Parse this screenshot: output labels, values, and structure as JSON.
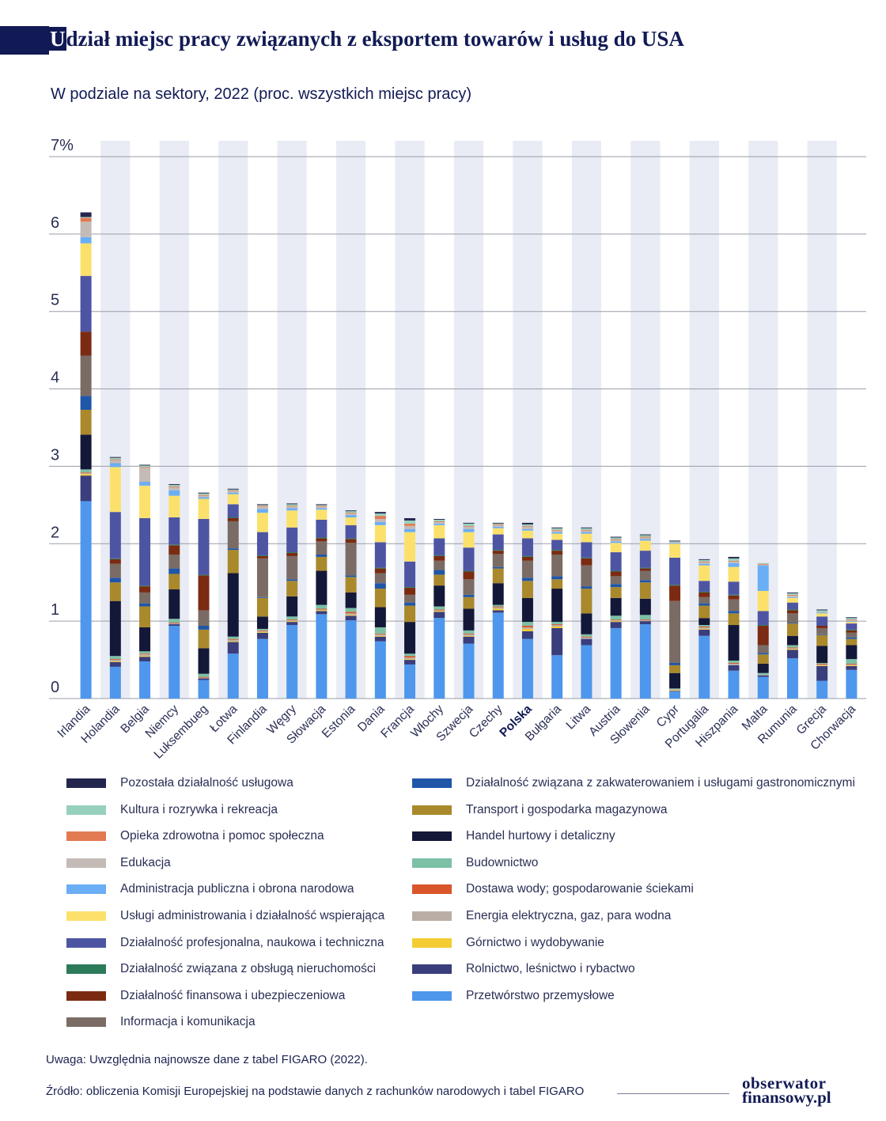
{
  "title": {
    "first_letter": "U",
    "rest": "dział miejsc pracy związanych z eksportem towarów i usług do USA"
  },
  "subtitle": "W podziale na sektory, 2022 (proc. wszystkich miejsc pracy)",
  "note": "Uwaga: Uwzględnia najnowsze dane z tabel FIGARO (2022).",
  "source": "Źródło: obliczenia Komisji Europejskiej na podstawie danych z rachunków narodowych i tabel FIGARO",
  "logo": {
    "line1": "obserwator",
    "line2": "finansowy.pl"
  },
  "colors": {
    "title": "#111a55",
    "band": "#e9ecf4",
    "grid": "#9a9da8",
    "highlight_label": "#111a55"
  },
  "chart_data": {
    "type": "bar",
    "stacked": true,
    "ylim": [
      0,
      7
    ],
    "yticks": [
      {
        "value": 0,
        "label": "0"
      },
      {
        "value": 1,
        "label": "1"
      },
      {
        "value": 2,
        "label": "2"
      },
      {
        "value": 3,
        "label": "3"
      },
      {
        "value": 4,
        "label": "4"
      },
      {
        "value": 5,
        "label": "5"
      },
      {
        "value": 6,
        "label": "6"
      },
      {
        "value": 7,
        "label": "7%"
      }
    ],
    "highlight_category": "Polska",
    "categories": [
      "Irlandia",
      "Holandia",
      "Belgia",
      "Niemcy",
      "Luksembueg",
      "Łotwa",
      "Finlandia",
      "Węgry",
      "Słowacja",
      "Estonia",
      "Dania",
      "Francja",
      "Włochy",
      "Szwecja",
      "Czechy",
      "Polska",
      "Bułgaria",
      "Litwa",
      "Austria",
      "Słowenia",
      "Cypr",
      "Portugalia",
      "Hiszpania",
      "Malta",
      "Rumunia",
      "Grecja",
      "Chorwacja"
    ],
    "series": [
      {
        "name": "Przetwórstwo przemysłowe",
        "color": "#4f97ec",
        "values": [
          2.55,
          0.41,
          0.48,
          0.94,
          0.24,
          0.58,
          0.77,
          0.95,
          1.09,
          1.01,
          0.74,
          0.44,
          1.04,
          0.71,
          1.11,
          0.77,
          0.56,
          0.69,
          0.91,
          0.96,
          0.09,
          0.81,
          0.36,
          0.28,
          0.52,
          0.23,
          0.37
        ]
      },
      {
        "name": "Rolnictwo, leśnictwo i rybactwo",
        "color": "#3a3e7c",
        "values": [
          0.33,
          0.06,
          0.06,
          0.02,
          0.02,
          0.15,
          0.08,
          0.04,
          0.04,
          0.06,
          0.06,
          0.06,
          0.08,
          0.09,
          0.03,
          0.1,
          0.35,
          0.08,
          0.08,
          0.04,
          0.01,
          0.08,
          0.07,
          0.02,
          0.11,
          0.19,
          0.05
        ]
      },
      {
        "name": "Górnictwo i wydobywanie",
        "color": "#f4cc33",
        "values": [
          0.02,
          0.01,
          0.01,
          0.0,
          0.0,
          0.01,
          0.01,
          0.01,
          0.01,
          0.01,
          0.01,
          0.01,
          0.01,
          0.01,
          0.02,
          0.03,
          0.02,
          0.0,
          0.01,
          0.0,
          0.01,
          0.01,
          0.0,
          0.0,
          0.01,
          0.01,
          0.01
        ]
      },
      {
        "name": "Energia elektryczna, gaz, para wodna",
        "color": "#b9aea6",
        "values": [
          0.01,
          0.02,
          0.02,
          0.01,
          0.01,
          0.02,
          0.01,
          0.01,
          0.01,
          0.02,
          0.02,
          0.02,
          0.01,
          0.02,
          0.02,
          0.02,
          0.02,
          0.02,
          0.01,
          0.01,
          0.01,
          0.02,
          0.02,
          0.01,
          0.01,
          0.01,
          0.01
        ]
      },
      {
        "name": "Dostawa wody; gospodarowanie ściekami",
        "color": "#d9562a",
        "values": [
          0.01,
          0.01,
          0.01,
          0.01,
          0.01,
          0.01,
          0.01,
          0.01,
          0.01,
          0.02,
          0.01,
          0.02,
          0.01,
          0.01,
          0.01,
          0.02,
          0.01,
          0.01,
          0.01,
          0.01,
          0.0,
          0.01,
          0.01,
          0.0,
          0.01,
          0.01,
          0.01
        ]
      },
      {
        "name": "Budownictwo",
        "color": "#7cc0a5",
        "values": [
          0.04,
          0.04,
          0.03,
          0.05,
          0.04,
          0.03,
          0.02,
          0.04,
          0.05,
          0.05,
          0.08,
          0.03,
          0.04,
          0.04,
          0.02,
          0.05,
          0.03,
          0.03,
          0.05,
          0.06,
          0.01,
          0.02,
          0.03,
          0.02,
          0.03,
          0.01,
          0.06
        ]
      },
      {
        "name": "Handel hurtowy i detaliczny",
        "color": "#141838",
        "values": [
          0.45,
          0.71,
          0.31,
          0.38,
          0.33,
          0.82,
          0.16,
          0.26,
          0.44,
          0.2,
          0.26,
          0.41,
          0.27,
          0.28,
          0.28,
          0.31,
          0.43,
          0.27,
          0.23,
          0.21,
          0.2,
          0.09,
          0.46,
          0.12,
          0.12,
          0.22,
          0.18
        ]
      },
      {
        "name": "Transport i gospodarka magazynowa",
        "color": "#a9892c",
        "values": [
          0.32,
          0.24,
          0.27,
          0.2,
          0.24,
          0.3,
          0.24,
          0.2,
          0.18,
          0.2,
          0.24,
          0.21,
          0.14,
          0.15,
          0.19,
          0.22,
          0.12,
          0.32,
          0.14,
          0.21,
          0.1,
          0.16,
          0.15,
          0.12,
          0.16,
          0.14,
          0.08
        ]
      },
      {
        "name": "Działalność związana z zakwaterowaniem i usługami gastronomicznymi",
        "color": "#1f56a8",
        "values": [
          0.18,
          0.06,
          0.04,
          0.07,
          0.05,
          0.02,
          0.01,
          0.02,
          0.03,
          0.02,
          0.07,
          0.04,
          0.06,
          0.03,
          0.02,
          0.04,
          0.04,
          0.03,
          0.04,
          0.03,
          0.03,
          0.03,
          0.03,
          0.02,
          0.01,
          0.01,
          0.02
        ]
      },
      {
        "name": "Informacja i komunikacja",
        "color": "#7a6c65",
        "values": [
          0.52,
          0.18,
          0.14,
          0.18,
          0.2,
          0.35,
          0.5,
          0.3,
          0.17,
          0.42,
          0.13,
          0.1,
          0.12,
          0.2,
          0.17,
          0.22,
          0.28,
          0.27,
          0.1,
          0.12,
          0.8,
          0.08,
          0.15,
          0.1,
          0.12,
          0.08,
          0.06
        ]
      },
      {
        "name": "Działalność finansowa i ubezpieczeniowa",
        "color": "#7a2b12",
        "values": [
          0.31,
          0.06,
          0.08,
          0.12,
          0.45,
          0.04,
          0.03,
          0.04,
          0.04,
          0.05,
          0.06,
          0.09,
          0.06,
          0.1,
          0.04,
          0.05,
          0.05,
          0.09,
          0.06,
          0.03,
          0.2,
          0.06,
          0.05,
          0.25,
          0.04,
          0.03,
          0.03
        ]
      },
      {
        "name": "Działalność związana z obsługą nieruchomości",
        "color": "#2d7a5a",
        "values": [
          0.0,
          0.01,
          0.01,
          0.01,
          0.01,
          0.01,
          0.01,
          0.01,
          0.01,
          0.01,
          0.01,
          0.01,
          0.01,
          0.01,
          0.01,
          0.01,
          0.01,
          0.01,
          0.01,
          0.01,
          0.01,
          0.01,
          0.01,
          0.01,
          0.01,
          0.0,
          0.01
        ]
      },
      {
        "name": "Działalność profesjonalna, naukowa i techniczna",
        "color": "#4d55a3",
        "values": [
          0.72,
          0.6,
          0.87,
          0.35,
          0.72,
          0.17,
          0.3,
          0.32,
          0.23,
          0.17,
          0.33,
          0.33,
          0.22,
          0.3,
          0.2,
          0.23,
          0.13,
          0.2,
          0.24,
          0.22,
          0.35,
          0.14,
          0.17,
          0.18,
          0.09,
          0.12,
          0.08
        ]
      },
      {
        "name": "Usługi administrowania i działalność wspierająca",
        "color": "#fbe16c",
        "values": [
          0.42,
          0.58,
          0.42,
          0.28,
          0.26,
          0.13,
          0.25,
          0.22,
          0.13,
          0.1,
          0.22,
          0.38,
          0.17,
          0.2,
          0.08,
          0.1,
          0.08,
          0.11,
          0.12,
          0.13,
          0.18,
          0.2,
          0.19,
          0.26,
          0.06,
          0.04,
          0.02
        ]
      },
      {
        "name": "Administracja publiczna i obrona narodowa",
        "color": "#6aaef5",
        "values": [
          0.08,
          0.05,
          0.05,
          0.07,
          0.02,
          0.02,
          0.05,
          0.03,
          0.02,
          0.03,
          0.04,
          0.04,
          0.02,
          0.04,
          0.02,
          0.02,
          0.02,
          0.02,
          0.02,
          0.02,
          0.01,
          0.02,
          0.05,
          0.33,
          0.01,
          0.01,
          0.01
        ]
      },
      {
        "name": "Edukacja",
        "color": "#c4bab6",
        "values": [
          0.2,
          0.04,
          0.18,
          0.04,
          0.02,
          0.02,
          0.03,
          0.02,
          0.02,
          0.02,
          0.04,
          0.04,
          0.02,
          0.03,
          0.02,
          0.03,
          0.02,
          0.02,
          0.02,
          0.02,
          0.01,
          0.02,
          0.02,
          0.01,
          0.02,
          0.01,
          0.01
        ]
      },
      {
        "name": "Opieka zdrowotna i pomoc społeczna",
        "color": "#e27a52",
        "values": [
          0.05,
          0.01,
          0.01,
          0.01,
          0.01,
          0.01,
          0.01,
          0.01,
          0.01,
          0.01,
          0.04,
          0.03,
          0.01,
          0.01,
          0.01,
          0.01,
          0.01,
          0.01,
          0.01,
          0.01,
          0.0,
          0.01,
          0.01,
          0.01,
          0.01,
          0.0,
          0.01
        ]
      },
      {
        "name": "Kultura i rozrywka i rekreacja",
        "color": "#97d1bd",
        "values": [
          0.01,
          0.02,
          0.02,
          0.02,
          0.02,
          0.01,
          0.01,
          0.02,
          0.01,
          0.02,
          0.03,
          0.04,
          0.02,
          0.03,
          0.01,
          0.02,
          0.02,
          0.02,
          0.02,
          0.02,
          0.01,
          0.02,
          0.03,
          0.01,
          0.02,
          0.02,
          0.02
        ]
      },
      {
        "name": "Pozostała działalność usługowa",
        "color": "#23264d",
        "values": [
          0.06,
          0.01,
          0.01,
          0.01,
          0.01,
          0.01,
          0.01,
          0.01,
          0.01,
          0.01,
          0.02,
          0.03,
          0.01,
          0.01,
          0.01,
          0.02,
          0.01,
          0.01,
          0.01,
          0.01,
          0.01,
          0.01,
          0.02,
          0.0,
          0.01,
          0.01,
          0.01
        ]
      }
    ]
  },
  "legend": {
    "left": [
      "Pozostała działalność usługowa",
      "Kultura i rozrywka i rekreacja",
      "Opieka zdrowotna i pomoc społeczna",
      "Edukacja",
      "Administracja publiczna i obrona narodowa",
      "Usługi administrowania i działalność wspierająca",
      "Działalność profesjonalna, naukowa i techniczna",
      "Działalność związana z obsługą nieruchomości",
      "Działalność finansowa i ubezpieczeniowa",
      "Informacja i komunikacja"
    ],
    "right": [
      "Działalność związana z zakwaterowaniem i usługami gastronomicznymi",
      "Transport i gospodarka magazynowa",
      "Handel hurtowy i detaliczny",
      "Budownictwo",
      "Dostawa wody; gospodarowanie ściekami",
      "Energia elektryczna, gaz, para wodna",
      "Górnictwo i wydobywanie",
      "Rolnictwo, leśnictwo i rybactwo",
      "Przetwórstwo przemysłowe"
    ]
  }
}
